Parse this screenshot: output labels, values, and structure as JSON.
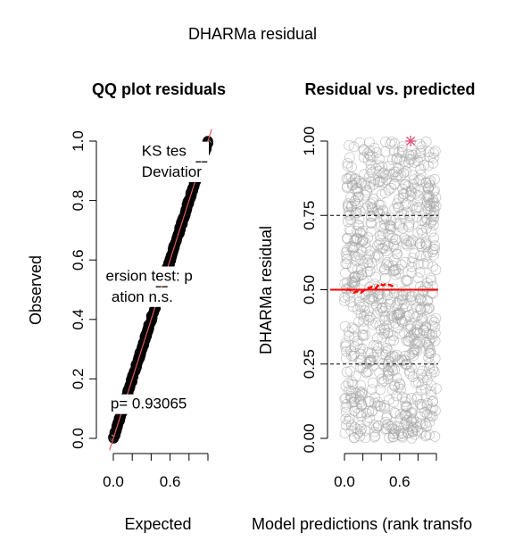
{
  "overall_title": "DHARMa residual",
  "chart_data": [
    {
      "type": "scatter",
      "title": "QQ plot residuals",
      "xlabel": "Expected",
      "ylabel": "Observed",
      "xlim": [
        0,
        1
      ],
      "ylim": [
        0,
        1
      ],
      "x_ticks": [
        0.0,
        0.2,
        0.4,
        0.6,
        0.8,
        1.0
      ],
      "x_tick_labels": [
        "0.0",
        "",
        "",
        "0.6",
        "",
        ""
      ],
      "y_ticks": [
        0.0,
        0.2,
        0.4,
        0.6,
        0.8,
        1.0
      ],
      "y_tick_labels": [
        "0.0",
        "0.2",
        "0.4",
        "0.6",
        "0.8",
        "1.0"
      ],
      "reference_line": {
        "from": [
          0,
          0
        ],
        "to": [
          1,
          1
        ],
        "color": "#e05a5a"
      },
      "points_color": "#000000",
      "annotations": [
        {
          "text": "KS tes",
          "x": 0.3,
          "y": 0.95
        },
        {
          "text": "Deviatior",
          "x": 0.3,
          "y": 0.88
        },
        {
          "text": "ersion test: p",
          "x": -0.08,
          "y": 0.53
        },
        {
          "text": "ation n.s.",
          "x": -0.02,
          "y": 0.46
        },
        {
          "text": "p= 0.93065",
          "x": -0.03,
          "y": 0.1
        }
      ]
    },
    {
      "type": "scatter",
      "title": "Residual vs. predicted",
      "xlabel": "Model predictions (rank transfo",
      "ylabel": "DHARMa residual",
      "xlim": [
        0,
        1
      ],
      "ylim": [
        0,
        1
      ],
      "x_ticks": [
        0.0,
        0.2,
        0.4,
        0.6,
        0.8,
        1.0
      ],
      "x_tick_labels": [
        "0.0",
        "",
        "",
        "0.6",
        "",
        ""
      ],
      "y_ticks": [
        0.0,
        0.25,
        0.5,
        0.75,
        1.0
      ],
      "y_tick_labels": [
        "0.00",
        "0.25",
        "0.50",
        "0.75",
        "1.00"
      ],
      "reference_lines": [
        {
          "y": 0.25,
          "style": "dashed",
          "color": "#000000"
        },
        {
          "y": 0.5,
          "style": "solid",
          "color": "#ff0000"
        },
        {
          "y": 0.75,
          "style": "dashed",
          "color": "#000000"
        }
      ],
      "quantile_curve": {
        "x": [
          0.02,
          0.06,
          0.1,
          0.14,
          0.18,
          0.22,
          0.26,
          0.3,
          0.34,
          0.38,
          0.42,
          0.46,
          0.5,
          0.55
        ],
        "y": [
          0.5,
          0.5,
          0.49,
          0.495,
          0.49,
          0.5,
          0.505,
          0.51,
          0.505,
          0.52,
          0.515,
          0.52,
          0.515,
          0.51
        ],
        "color": "#ff0000"
      },
      "points_color": "#a0a0a0",
      "outlier": {
        "x": 0.72,
        "y": 1.0,
        "color": "#e0507a"
      }
    }
  ]
}
